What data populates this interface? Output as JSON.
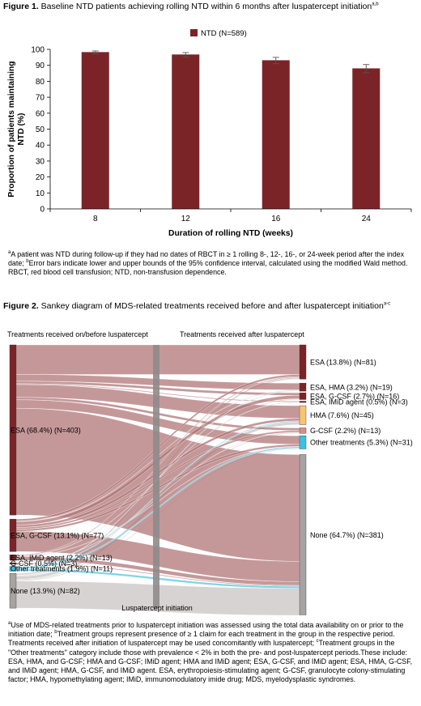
{
  "figure1": {
    "label": "Figure 1.",
    "title": " Baseline NTD patients achieving rolling NTD within 6 months after luspatercept initiation",
    "title_sup": "a,b",
    "footnote_a_sup": "a",
    "footnote_a": "A patient was NTD during follow-up if they had no dates of RBCT in ≥ 1 rolling 8-, 12-, 16-, or 24-week period after the index date; ",
    "footnote_b_sup": "b",
    "footnote_b": "Error bars indicate lower and upper bounds of the 95% confidence interval, calculated using the modified Wald method. RBCT, red blood cell transfusion; NTD, non-transfusion dependence."
  },
  "figure2": {
    "label": "Figure 2.",
    "title": " Sankey diagram of MDS-related treatments received before and after luspatercept initiation",
    "title_sup": "a-c",
    "left_header": "Treatments received on/before luspatercept",
    "right_header": "Treatments received after luspatercept",
    "center_label": "Luspatercept initiation",
    "footnote_a_sup": "a",
    "footnote_a": "Use of MDS-related treatments prior to luspatercept initiation was assessed using the total data availability on or prior to the initiation date; ",
    "footnote_b_sup": "b",
    "footnote_b": "Treatment groups represent presence of ≥ 1 claim for each treatment in the group in the respective period. Treatments received after initiation of luspatercept may be used concomitantly with luspatercept; ",
    "footnote_c_sup": "c",
    "footnote_c": "Treatment groups in the \"Other treatments\" category include those with prevalence < 2% in both the pre- and post-luspatercept periods.These include: ESA, HMA, and G-CSF; HMA and G-CSF; IMiD agent; HMA and IMiD agent; ESA, G-CSF, and IMiD agent; ESA, HMA, G-CSF, and IMiD agent; HMA, G-CSF, and IMiD agent. ESA, erythropoiesis-stimulating agent; G-CSF, granulocyte colony-stimulating factor; HMA, hypomethylating agent; IMiD, immunomodulatory imide drug; MDS, myelodysplastic syndromes."
  },
  "colors": {
    "bar": "#7b2427",
    "flow_red": "#b07577",
    "flow_grey": "#c9c4c4",
    "flow_cyan": "#6fd0e4",
    "node_red": "#7b2427",
    "node_grey": "#a7a3a3",
    "node_hma": "#f6c56e",
    "node_gcsf": "#d98c8a",
    "node_other": "#38c3e3",
    "center_bar": "#8f8b8b"
  },
  "chart_data": [
    {
      "type": "bar",
      "categories": [
        "8",
        "12",
        "16",
        "24"
      ],
      "series": [
        {
          "name": "NTD (N=589)",
          "values": [
            98.3,
            96.8,
            93.2,
            88.1
          ],
          "error_low": [
            97.2,
            95.2,
            91.0,
            85.4
          ],
          "error_high": [
            99.0,
            98.0,
            95.0,
            90.5
          ]
        }
      ],
      "xlabel": "Duration of rolling NTD (weeks)",
      "ylabel": "Proportion of patients maintaining NTD (%)",
      "ylim": [
        0,
        100
      ],
      "yticks": [
        "0",
        "10",
        "20",
        "30",
        "40",
        "50",
        "60",
        "70",
        "80",
        "90",
        "100"
      ],
      "legend_position": "top",
      "grid": false
    },
    {
      "type": "sankey",
      "left_nodes": [
        {
          "label": "ESA (68.4%) (N=403)",
          "n": 403,
          "color": "node_red"
        },
        {
          "label": "ESA, G-CSF (13.1%) (N=77)",
          "n": 77,
          "color": "node_red"
        },
        {
          "label": "ESA, IMiD agent (2.2%) (N=13)",
          "n": 13,
          "color": "node_red"
        },
        {
          "label": "G-CSF (0.5%) (N=3)",
          "n": 3,
          "color": "node_red"
        },
        {
          "label": "Other treatments (1.9%) (N=11)",
          "n": 11,
          "color": "node_other"
        },
        {
          "label": "None (13.9%) (N=82)",
          "n": 82,
          "color": "node_grey"
        }
      ],
      "right_nodes": [
        {
          "label": "ESA (13.8%) (N=81)",
          "n": 81,
          "color": "node_red"
        },
        {
          "label": "ESA, HMA (3.2%) (N=19)",
          "n": 19,
          "color": "node_red"
        },
        {
          "label": "ESA, G-CSF (2.7%) (N=16)",
          "n": 16,
          "color": "node_red"
        },
        {
          "label": "ESA, IMiD agent (0.5%) (N=3)",
          "n": 3,
          "color": "node_red"
        },
        {
          "label": "HMA (7.6%) (N=45)",
          "n": 45,
          "color": "node_hma"
        },
        {
          "label": "G-CSF (2.2%) (N=13)",
          "n": 13,
          "color": "node_gcsf"
        },
        {
          "label": "Other treatments (5.3%) (N=31)",
          "n": 31,
          "color": "node_other"
        },
        {
          "label": "None (64.7%) (N=381)",
          "n": 381,
          "color": "node_grey"
        }
      ],
      "flows": [
        {
          "from": 0,
          "to": 0,
          "n": 70,
          "color": "flow_red"
        },
        {
          "from": 0,
          "to": 1,
          "n": 16,
          "color": "flow_red"
        },
        {
          "from": 0,
          "to": 2,
          "n": 6,
          "color": "flow_red"
        },
        {
          "from": 0,
          "to": 3,
          "n": 2,
          "color": "flow_red"
        },
        {
          "from": 0,
          "to": 4,
          "n": 30,
          "color": "flow_red"
        },
        {
          "from": 0,
          "to": 5,
          "n": 6,
          "color": "flow_red"
        },
        {
          "from": 0,
          "to": 6,
          "n": 20,
          "color": "flow_red"
        },
        {
          "from": 0,
          "to": 7,
          "n": 253,
          "color": "flow_red"
        },
        {
          "from": 1,
          "to": 0,
          "n": 5,
          "color": "flow_red"
        },
        {
          "from": 1,
          "to": 1,
          "n": 1,
          "color": "flow_red"
        },
        {
          "from": 1,
          "to": 2,
          "n": 8,
          "color": "flow_red"
        },
        {
          "from": 1,
          "to": 4,
          "n": 6,
          "color": "flow_red"
        },
        {
          "from": 1,
          "to": 5,
          "n": 4,
          "color": "flow_red"
        },
        {
          "from": 1,
          "to": 6,
          "n": 5,
          "color": "flow_red"
        },
        {
          "from": 1,
          "to": 7,
          "n": 48,
          "color": "flow_red"
        },
        {
          "from": 2,
          "to": 0,
          "n": 2,
          "color": "flow_red"
        },
        {
          "from": 2,
          "to": 3,
          "n": 1,
          "color": "flow_red"
        },
        {
          "from": 2,
          "to": 6,
          "n": 1,
          "color": "flow_red"
        },
        {
          "from": 2,
          "to": 7,
          "n": 9,
          "color": "flow_red"
        },
        {
          "from": 3,
          "to": 5,
          "n": 1,
          "color": "flow_red"
        },
        {
          "from": 3,
          "to": 7,
          "n": 2,
          "color": "flow_red"
        },
        {
          "from": 4,
          "to": 1,
          "n": 1,
          "color": "flow_cyan"
        },
        {
          "from": 4,
          "to": 4,
          "n": 2,
          "color": "flow_cyan"
        },
        {
          "from": 4,
          "to": 6,
          "n": 3,
          "color": "flow_cyan"
        },
        {
          "from": 4,
          "to": 7,
          "n": 5,
          "color": "flow_cyan"
        },
        {
          "from": 5,
          "to": 0,
          "n": 4,
          "color": "flow_grey"
        },
        {
          "from": 5,
          "to": 1,
          "n": 1,
          "color": "flow_grey"
        },
        {
          "from": 5,
          "to": 2,
          "n": 2,
          "color": "flow_grey"
        },
        {
          "from": 5,
          "to": 4,
          "n": 7,
          "color": "flow_grey"
        },
        {
          "from": 5,
          "to": 5,
          "n": 2,
          "color": "flow_grey"
        },
        {
          "from": 5,
          "to": 6,
          "n": 2,
          "color": "flow_grey"
        },
        {
          "from": 5,
          "to": 7,
          "n": 64,
          "color": "flow_grey"
        }
      ]
    }
  ]
}
